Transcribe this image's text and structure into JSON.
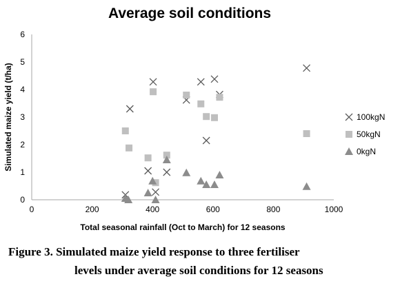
{
  "chart_data": {
    "type": "scatter",
    "title": "Average soil conditions",
    "xlabel": "Total seasonal rainfall (Oct to March) for 12 seasons",
    "ylabel": "Simulated maize yield (t/ha)",
    "xlim": [
      0,
      1000
    ],
    "ylim": [
      0,
      6
    ],
    "xticks": [
      0,
      200,
      400,
      600,
      800,
      1000
    ],
    "yticks": [
      0,
      1,
      2,
      3,
      4,
      5,
      6
    ],
    "grid": false,
    "legend_position": "right",
    "series": [
      {
        "name": "100kgN",
        "marker": "x",
        "color": "#595959",
        "points": [
          [
            310,
            0.18
          ],
          [
            325,
            3.3
          ],
          [
            385,
            1.05
          ],
          [
            402,
            4.28
          ],
          [
            410,
            0.28
          ],
          [
            447,
            1.0
          ],
          [
            512,
            3.62
          ],
          [
            560,
            4.28
          ],
          [
            578,
            2.15
          ],
          [
            605,
            4.38
          ],
          [
            622,
            3.82
          ],
          [
            910,
            4.78
          ]
        ]
      },
      {
        "name": "50kgN",
        "marker": "square",
        "color": "#bfbfbf",
        "points": [
          [
            310,
            2.5
          ],
          [
            322,
            1.88
          ],
          [
            385,
            1.52
          ],
          [
            402,
            3.92
          ],
          [
            410,
            0.62
          ],
          [
            447,
            1.62
          ],
          [
            512,
            3.8
          ],
          [
            560,
            3.48
          ],
          [
            578,
            3.02
          ],
          [
            605,
            2.98
          ],
          [
            622,
            3.72
          ],
          [
            910,
            2.4
          ]
        ]
      },
      {
        "name": "0kgN",
        "marker": "triangle",
        "color": "#8c8c8c",
        "points": [
          [
            310,
            0.05
          ],
          [
            320,
            0.0
          ],
          [
            385,
            0.25
          ],
          [
            400,
            0.68
          ],
          [
            410,
            0.0
          ],
          [
            447,
            1.45
          ],
          [
            512,
            0.98
          ],
          [
            560,
            0.68
          ],
          [
            578,
            0.55
          ],
          [
            605,
            0.55
          ],
          [
            622,
            0.9
          ],
          [
            910,
            0.48
          ]
        ]
      }
    ]
  },
  "caption": {
    "line1": "Figure 3.   Simulated maize yield response to three fertiliser",
    "line2": "levels under average soil conditions for 12 seasons"
  }
}
